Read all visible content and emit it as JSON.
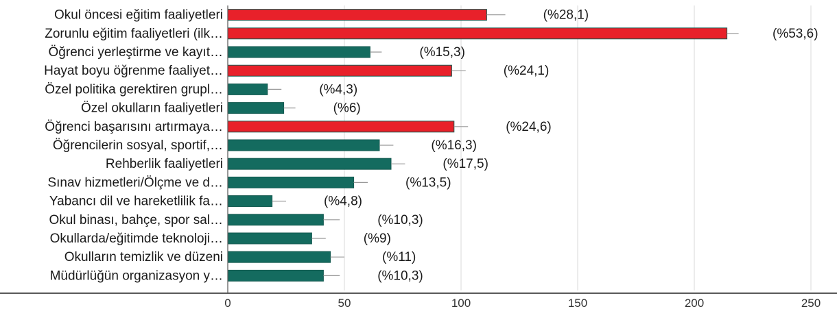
{
  "chart_data": {
    "type": "bar",
    "orientation": "horizontal",
    "categories": [
      "Okul öncesi eğitim faaliyetleri",
      "Zorunlu eğitim faaliyetleri (ilk…",
      "Öğrenci yerleştirme ve kayıt…",
      "Hayat boyu öğrenme faaliyet…",
      "Özel politika gerektiren grupl…",
      "Özel okulların faaliyetleri",
      "Öğrenci başarısını artırmaya…",
      "Öğrencilerin sosyal, sportif,…",
      "Rehberlik faaliyetleri",
      "Sınav hizmetleri/Ölçme ve d…",
      "Yabancı dil ve hareketlilik fa…",
      "Okul binası, bahçe, spor sal…",
      "Okullarda/eğitimde teknoloji…",
      "Okulların temizlik ve düzeni",
      "Müdürlüğün organizasyon y…"
    ],
    "values": [
      111,
      214,
      61,
      96,
      17,
      24,
      97,
      65,
      70,
      54,
      19,
      41,
      36,
      44,
      41
    ],
    "error_upper": [
      119,
      219,
      66,
      102,
      23,
      29,
      103,
      71,
      76,
      60,
      25,
      48,
      42,
      50,
      48
    ],
    "value_labels": [
      "(%28,1)",
      "(%53,6)",
      "(%15,3)",
      "(%24,1)",
      "(%4,3)",
      "(%6)",
      "(%24,6)",
      "(%16,3)",
      "(%17,5)",
      "(%13,5)",
      "(%4,8)",
      "(%10,3)",
      "(%9)",
      "(%11)",
      "(%10,3)"
    ],
    "highlighted": [
      true,
      true,
      false,
      true,
      false,
      false,
      true,
      false,
      false,
      false,
      false,
      false,
      false,
      false,
      false
    ],
    "xlim": [
      0,
      250
    ],
    "xticks": [
      "0",
      "50",
      "100",
      "150",
      "200",
      "250"
    ],
    "grid": true,
    "colors": {
      "highlight": "#e8212a",
      "normal": "#146b5f",
      "grid": "#d9d9d9",
      "axis": "#222222"
    }
  }
}
